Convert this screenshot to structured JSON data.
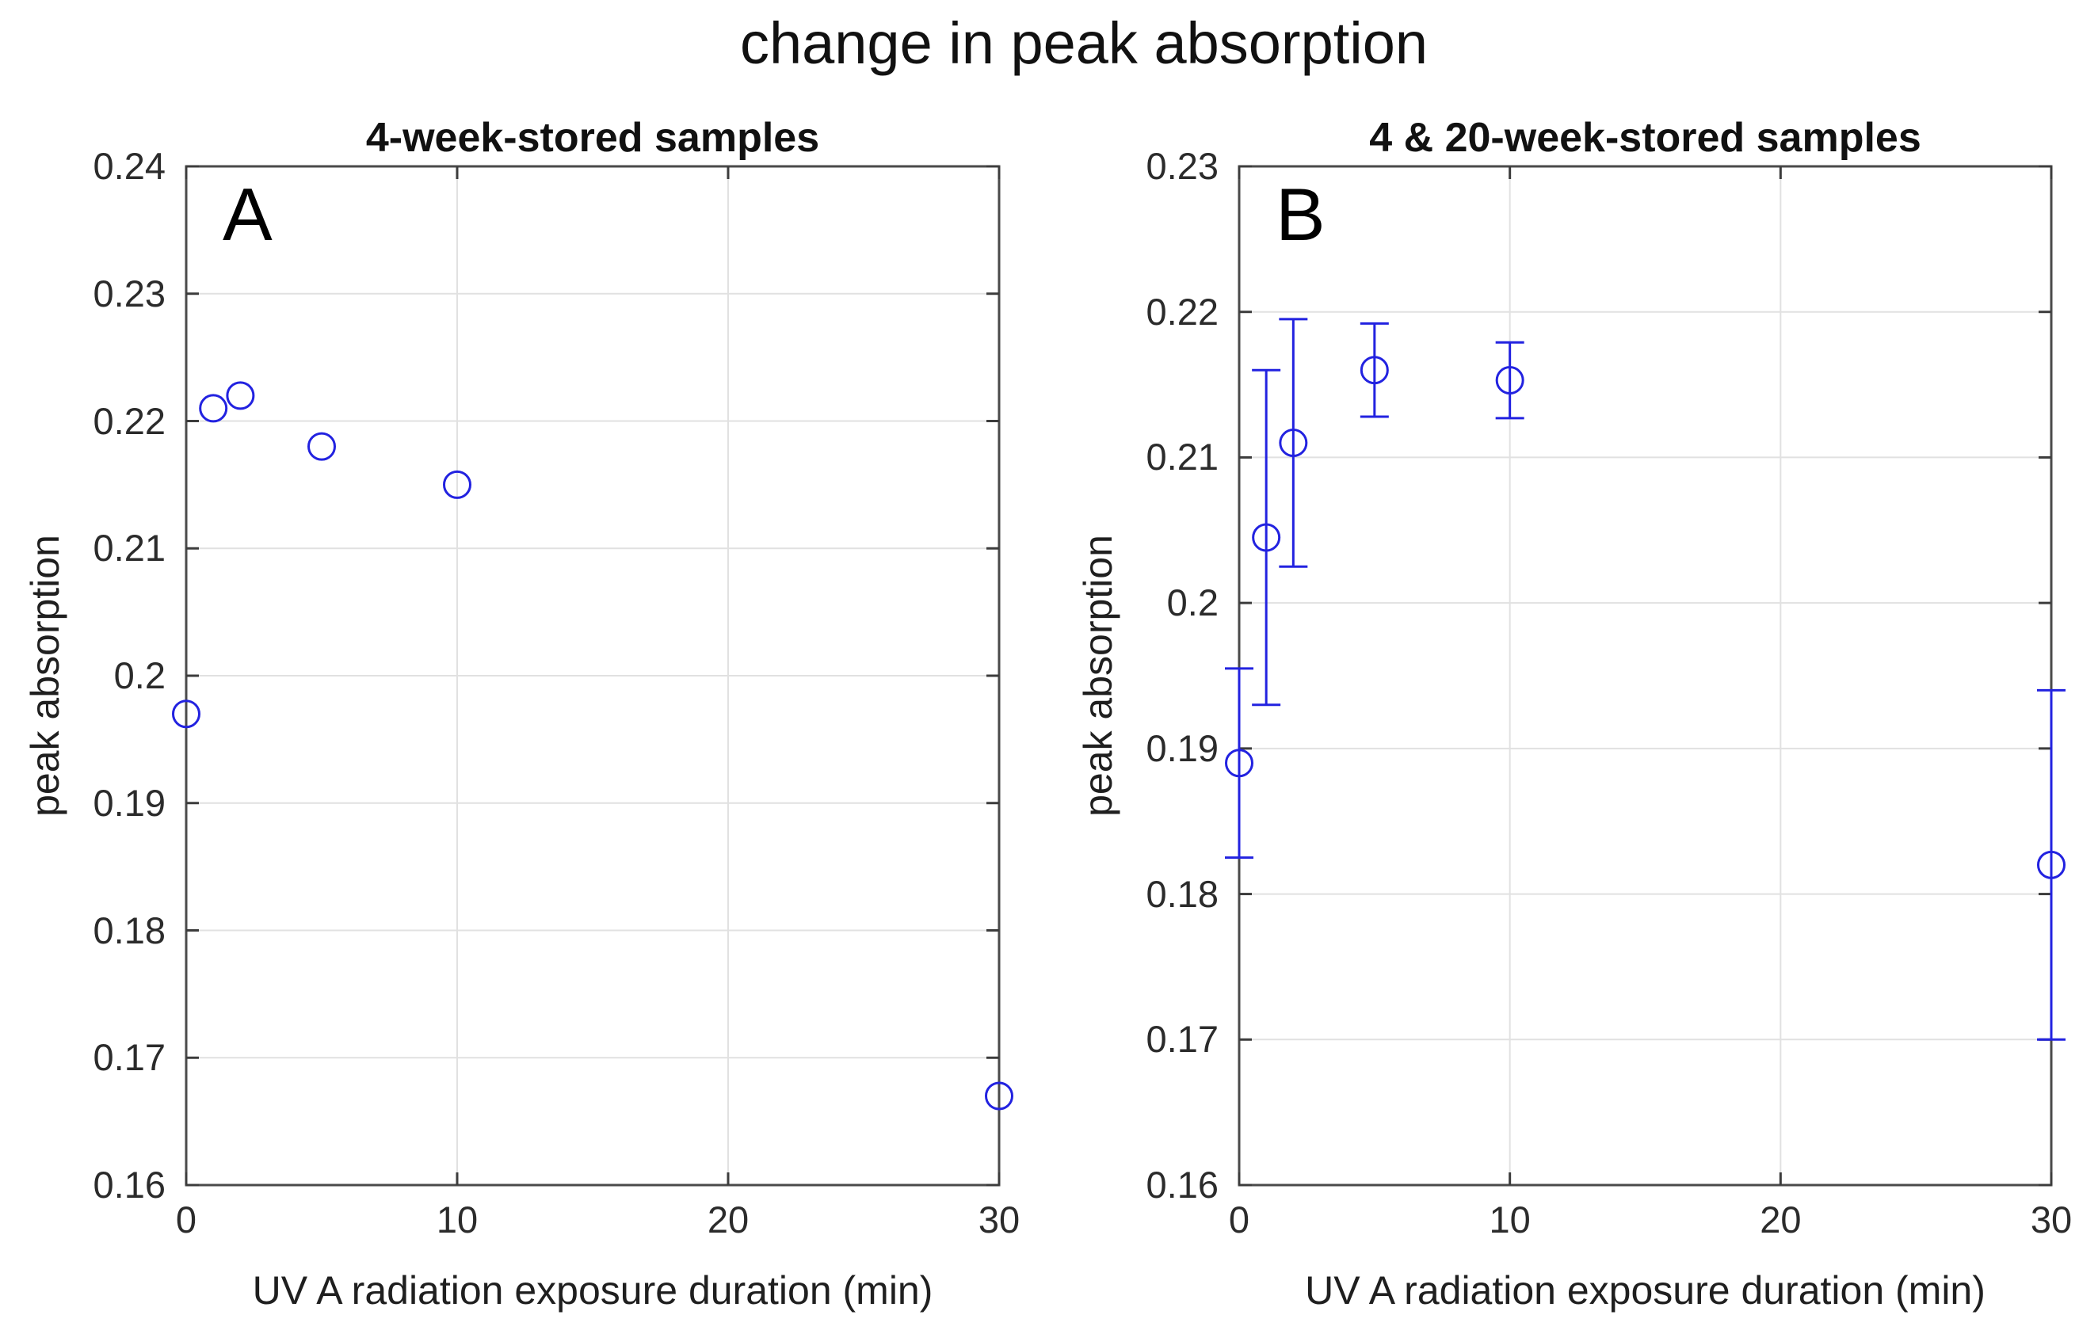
{
  "figure": {
    "title": "change in peak absorption"
  },
  "style": {
    "marker_color": "#2222E0",
    "grid_color": "#E1E1E1",
    "axis_color": "#4A4A4A",
    "tick_color": "#3C3C3C",
    "text_color": "#1F1F1F",
    "background": "#FFFFFF"
  },
  "chart_data": [
    {
      "type": "scatter",
      "panel_letter": "A",
      "title": "4-week-stored samples",
      "xlabel": "UV A radiation exposure duration (min)",
      "ylabel": "peak absorption",
      "x": [
        0,
        1,
        2,
        5,
        10,
        30
      ],
      "y": [
        0.197,
        0.221,
        0.222,
        0.218,
        0.215,
        0.167
      ],
      "error_bars": false,
      "xlim": [
        0,
        30
      ],
      "ylim": [
        0.16,
        0.24
      ],
      "xticks": [
        0,
        10,
        20,
        30
      ],
      "xtick_labels": [
        "0",
        "10",
        "20",
        "30"
      ],
      "yticks": [
        0.16,
        0.17,
        0.18,
        0.19,
        0.2,
        0.21,
        0.22,
        0.23,
        0.24
      ],
      "ytick_labels": [
        "0.16",
        "0.17",
        "0.18",
        "0.19",
        "0.2",
        "0.21",
        "0.22",
        "0.23",
        "0.24"
      ],
      "grid": true,
      "legend": null,
      "marker": "open-circle"
    },
    {
      "type": "scatter-errorbar",
      "panel_letter": "B",
      "title": "4 & 20-week-stored samples",
      "xlabel": "UV A radiation exposure duration (min)",
      "ylabel": "peak absorption",
      "x": [
        0,
        1,
        2,
        5,
        10,
        30
      ],
      "y": [
        0.189,
        0.2045,
        0.211,
        0.216,
        0.2153,
        0.182
      ],
      "err_lo": [
        0.1825,
        0.193,
        0.2025,
        0.2128,
        0.2127,
        0.17
      ],
      "err_hi": [
        0.1955,
        0.216,
        0.2195,
        0.2192,
        0.2179,
        0.194
      ],
      "error_bars": true,
      "xlim": [
        0,
        30
      ],
      "ylim": [
        0.16,
        0.23
      ],
      "xticks": [
        0,
        10,
        20,
        30
      ],
      "xtick_labels": [
        "0",
        "10",
        "20",
        "30"
      ],
      "yticks": [
        0.16,
        0.17,
        0.18,
        0.19,
        0.2,
        0.21,
        0.22,
        0.23
      ],
      "ytick_labels": [
        "0.16",
        "0.17",
        "0.18",
        "0.19",
        "0.2",
        "0.21",
        "0.22",
        "0.23"
      ],
      "grid": true,
      "legend": null,
      "marker": "open-circle"
    }
  ]
}
